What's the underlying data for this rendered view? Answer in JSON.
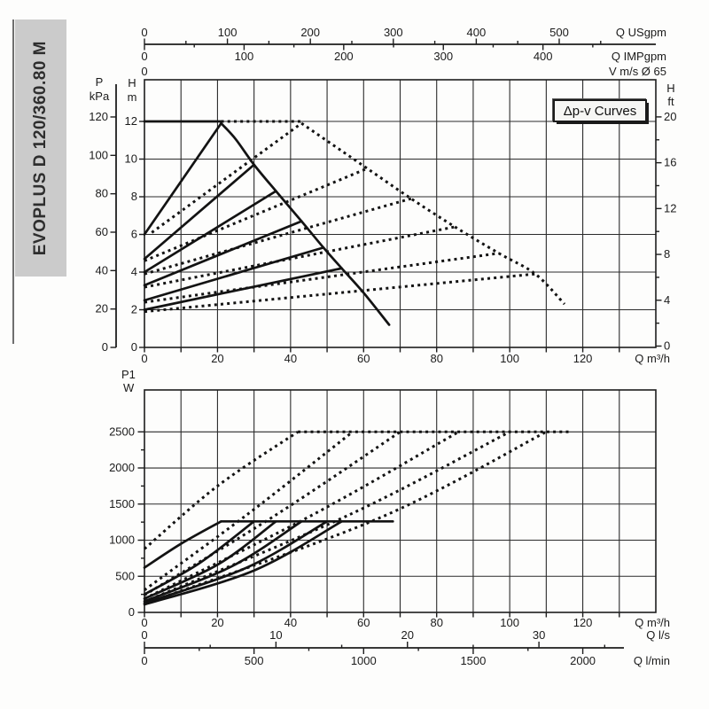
{
  "side_label": {
    "text": "EVOPLUS D 120/360.80 M"
  },
  "legend_box": {
    "label": "Δp-v Curves"
  },
  "colors": {
    "ink": "#1b1b1b",
    "grid": "#2b2b2b",
    "strip_bg": "#cbcbcb"
  },
  "chart_data": [
    {
      "type": "line",
      "name": "head-vs-flow",
      "title": "Δp-v Curves",
      "x_axis": {
        "label": "Q m³/h",
        "ticks": [
          0,
          20,
          40,
          60,
          80,
          100,
          120
        ],
        "minor_step": 10,
        "range": [
          0,
          140
        ]
      },
      "x_axes_top": [
        {
          "label": "Q USgpm",
          "ticks": [
            0,
            100,
            200,
            300,
            400,
            500
          ],
          "minor_step": 50,
          "m3h_per_unit": 0.2271
        },
        {
          "label": "Q IMPgpm",
          "ticks": [
            0,
            100,
            200,
            300,
            400
          ],
          "minor_step": 50,
          "m3h_per_unit": 0.27276
        },
        {
          "label": "V m/s Ø 65",
          "ticks": [
            0
          ]
        }
      ],
      "y_axis_kpa": {
        "header": [
          "P",
          "kPa"
        ],
        "ticks": [
          120,
          100,
          80,
          60,
          40,
          20,
          0
        ],
        "m_per_kpa": 0.10197
      },
      "y_axis_m": {
        "header": [
          "H",
          "m"
        ],
        "ticks": [
          12,
          10,
          8,
          6,
          4,
          2,
          0
        ]
      },
      "y_axis_ft": {
        "header": [
          "H",
          "ft"
        ],
        "ticks": [
          20,
          16,
          12,
          8,
          4,
          0
        ],
        "minor_step": 2
      },
      "ylim_m": [
        0,
        14.2
      ],
      "grid": {
        "x_step": 10,
        "y_step": 2
      },
      "series": [
        {
          "id": "setpoint-12-flat",
          "style": "solid",
          "points": [
            [
              0,
              12
            ],
            [
              21,
              12
            ]
          ]
        },
        {
          "id": "dpv-line-1",
          "style": "solid",
          "points": [
            [
              0,
              6.0
            ],
            [
              21,
              11.9
            ]
          ]
        },
        {
          "id": "dpv-line-2",
          "style": "solid",
          "points": [
            [
              0,
              4.7
            ],
            [
              30,
              9.7
            ]
          ]
        },
        {
          "id": "dpv-line-3",
          "style": "solid",
          "points": [
            [
              0,
              4.0
            ],
            [
              36,
              8.3
            ]
          ]
        },
        {
          "id": "dpv-line-4",
          "style": "solid",
          "points": [
            [
              0,
              3.3
            ],
            [
              43,
              6.7
            ]
          ]
        },
        {
          "id": "dpv-line-5",
          "style": "solid",
          "points": [
            [
              0,
              2.5
            ],
            [
              49,
              5.3
            ]
          ]
        },
        {
          "id": "dpv-line-6",
          "style": "solid",
          "points": [
            [
              0,
              2.0
            ],
            [
              54,
              4.2
            ]
          ]
        },
        {
          "id": "max-speed-envelope",
          "style": "solid",
          "points": [
            [
              21,
              11.9
            ],
            [
              25,
              11.05
            ],
            [
              30,
              9.7
            ],
            [
              36,
              8.3
            ],
            [
              43,
              6.7
            ],
            [
              49,
              5.3
            ],
            [
              54,
              4.2
            ],
            [
              60,
              2.9
            ],
            [
              67,
              1.2
            ]
          ]
        },
        {
          "id": "parallel-12-flat",
          "style": "dotted",
          "points": [
            [
              21,
              12
            ],
            [
              43,
              12
            ]
          ]
        },
        {
          "id": "parallel-line-1",
          "style": "dotted",
          "points": [
            [
              2,
              6.1
            ],
            [
              43,
              11.9
            ]
          ]
        },
        {
          "id": "parallel-line-2",
          "style": "dotted",
          "points": [
            [
              0,
              4.6
            ],
            [
              61,
              9.5
            ]
          ]
        },
        {
          "id": "parallel-line-3",
          "style": "dotted",
          "points": [
            [
              0,
              3.9
            ],
            [
              73,
              7.9
            ]
          ]
        },
        {
          "id": "parallel-line-4",
          "style": "dotted",
          "points": [
            [
              0,
              3.2
            ],
            [
              85,
              6.4
            ]
          ]
        },
        {
          "id": "parallel-line-5",
          "style": "dotted",
          "points": [
            [
              0,
              2.4
            ],
            [
              97,
              5.0
            ]
          ]
        },
        {
          "id": "parallel-line-6",
          "style": "dotted",
          "points": [
            [
              0,
              1.9
            ],
            [
              107,
              3.9
            ]
          ]
        },
        {
          "id": "parallel-envelope",
          "style": "dotted",
          "points": [
            [
              43,
              11.9
            ],
            [
              52,
              10.7
            ],
            [
              61,
              9.5
            ],
            [
              73,
              7.9
            ],
            [
              85,
              6.4
            ],
            [
              97,
              5.0
            ],
            [
              107,
              3.9
            ],
            [
              115,
              2.3
            ]
          ]
        }
      ]
    },
    {
      "type": "line",
      "name": "power-vs-flow",
      "y_axis_w": {
        "header": [
          "P1",
          "W"
        ],
        "ticks": [
          2500,
          2000,
          1500,
          1000,
          500,
          0
        ],
        "minor_step": 250
      },
      "x_axis": {
        "label": "Q m³/h",
        "ticks": [
          0,
          20,
          40,
          60,
          80,
          100,
          120
        ],
        "minor_step": 10,
        "range": [
          0,
          140
        ]
      },
      "x_axes_bottom": [
        {
          "label": "Q l/s",
          "ticks": [
            0,
            10,
            20,
            30
          ],
          "minor_step": 5,
          "m3h_per_unit": 3.6
        },
        {
          "label": "Q l/min",
          "ticks": [
            0,
            500,
            1000,
            1500,
            2000
          ],
          "minor_step": 250,
          "m3h_per_unit": 0.06
        }
      ],
      "ylim_w": [
        0,
        3080
      ],
      "grid": {
        "x_step": 10,
        "y_step": 500
      },
      "series": [
        {
          "id": "power-1",
          "style": "solid",
          "points": [
            [
              0,
              620
            ],
            [
              10,
              950
            ],
            [
              21,
              1260
            ]
          ]
        },
        {
          "id": "power-2",
          "style": "solid",
          "points": [
            [
              0,
              250
            ],
            [
              15,
              680
            ],
            [
              30,
              1260
            ]
          ]
        },
        {
          "id": "power-3",
          "style": "solid",
          "points": [
            [
              0,
              190
            ],
            [
              20,
              660
            ],
            [
              36,
              1260
            ]
          ]
        },
        {
          "id": "power-4",
          "style": "solid",
          "points": [
            [
              0,
              155
            ],
            [
              24,
              640
            ],
            [
              43,
              1260
            ]
          ]
        },
        {
          "id": "power-5",
          "style": "solid",
          "points": [
            [
              0,
              130
            ],
            [
              28,
              620
            ],
            [
              50,
              1260
            ]
          ]
        },
        {
          "id": "power-6",
          "style": "solid",
          "points": [
            [
              0,
              110
            ],
            [
              30,
              580
            ],
            [
              54,
              1260
            ]
          ]
        },
        {
          "id": "power-max-plateau",
          "style": "solid",
          "points": [
            [
              21,
              1260
            ],
            [
              68,
              1260
            ]
          ]
        },
        {
          "id": "power-parallel-1",
          "style": "dotted",
          "points": [
            [
              0,
              880
            ],
            [
              20,
              1750
            ],
            [
              42,
              2500
            ]
          ]
        },
        {
          "id": "power-parallel-2",
          "style": "dotted",
          "points": [
            [
              0,
              310
            ],
            [
              28,
              1350
            ],
            [
              57,
              2500
            ]
          ]
        },
        {
          "id": "power-parallel-3",
          "style": "dotted",
          "points": [
            [
              0,
              240
            ],
            [
              36,
              1350
            ],
            [
              70,
              2500
            ]
          ]
        },
        {
          "id": "power-parallel-4",
          "style": "dotted",
          "points": [
            [
              0,
              190
            ],
            [
              46,
              1350
            ],
            [
              86,
              2500
            ]
          ]
        },
        {
          "id": "power-parallel-5",
          "style": "dotted",
          "points": [
            [
              0,
              150
            ],
            [
              56,
              1350
            ],
            [
              100,
              2500
            ]
          ]
        },
        {
          "id": "power-parallel-6",
          "style": "dotted",
          "points": [
            [
              0,
              120
            ],
            [
              64,
              1300
            ],
            [
              110,
              2500
            ]
          ]
        },
        {
          "id": "power-parallel-plateau",
          "style": "dotted",
          "points": [
            [
              42,
              2500
            ],
            [
              117,
              2500
            ]
          ]
        }
      ]
    }
  ]
}
